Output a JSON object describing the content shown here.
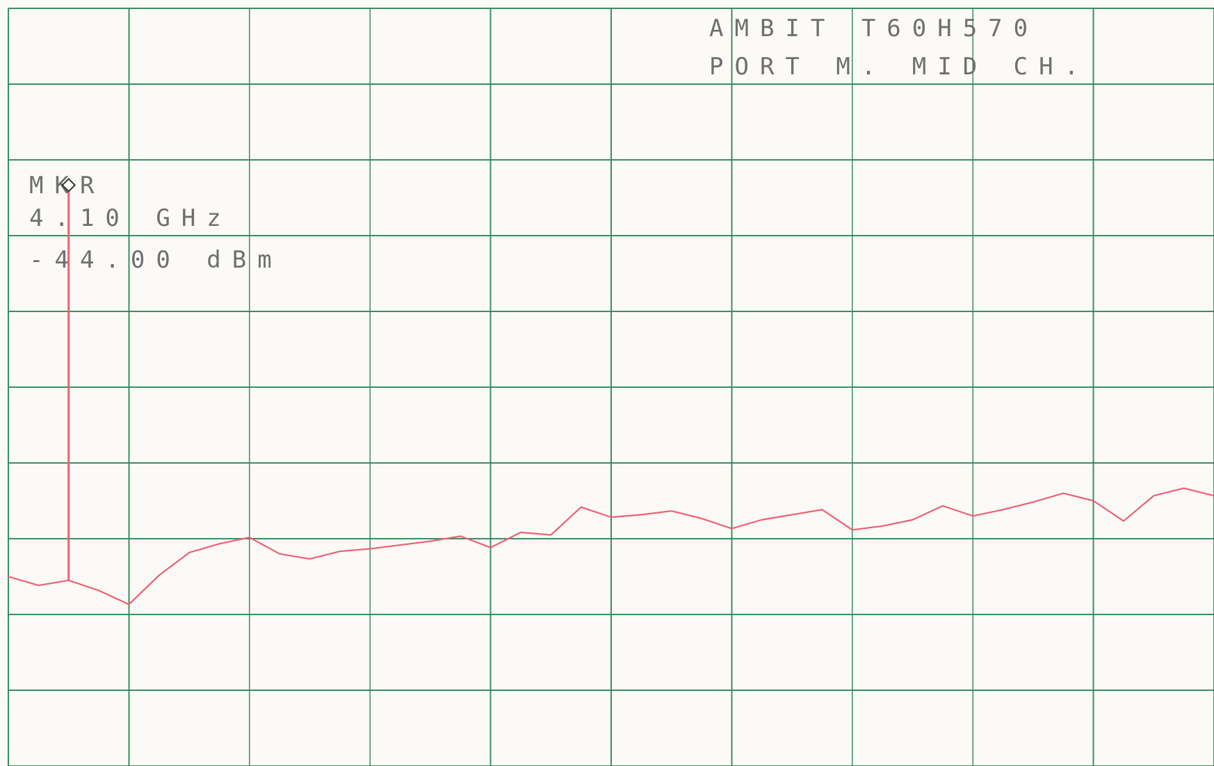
{
  "chart_data": {
    "type": "line",
    "title_lines": [
      "AMBIT  T60H570",
      "PORT M.  MID CH."
    ],
    "marker": {
      "label": "MKR",
      "frequency": "4.10 GHz",
      "level": "-44.00 dBm",
      "x": 0.5,
      "y": -44
    },
    "grid": true,
    "xlim": [
      0,
      10
    ],
    "ylim": [
      -90,
      -30
    ],
    "xlabel": "",
    "ylabel": "",
    "series": [
      {
        "name": "",
        "color": "#ee5f73",
        "x": [
          0,
          0.25,
          0.5,
          0.75,
          1.0,
          1.25,
          1.5,
          1.75,
          2.0,
          2.25,
          2.5,
          2.75,
          3.0,
          3.25,
          3.5,
          3.75,
          4.0,
          4.25,
          4.5,
          4.75,
          5.0,
          5.25,
          5.5,
          5.75,
          6.0,
          6.25,
          6.5,
          6.75,
          7.0,
          7.25,
          7.5,
          7.75,
          8.0,
          8.25,
          8.5,
          8.75,
          9.0,
          9.25,
          9.5,
          9.75,
          10.0
        ],
        "values": [
          -75.0,
          -75.7,
          -75.3,
          -76.1,
          -77.2,
          -74.9,
          -73.1,
          -72.4,
          -71.9,
          -73.2,
          -73.6,
          -73.0,
          -72.8,
          -72.5,
          -72.2,
          -71.8,
          -72.7,
          -71.5,
          -71.7,
          -69.5,
          -70.3,
          -70.1,
          -69.8,
          -70.4,
          -71.2,
          -70.5,
          -70.1,
          -69.7,
          -71.3,
          -71.0,
          -70.5,
          -69.4,
          -70.2,
          -69.7,
          -69.1,
          -68.4,
          -69.0,
          -70.6,
          -68.6,
          -68.0,
          -68.6
        ]
      }
    ]
  }
}
